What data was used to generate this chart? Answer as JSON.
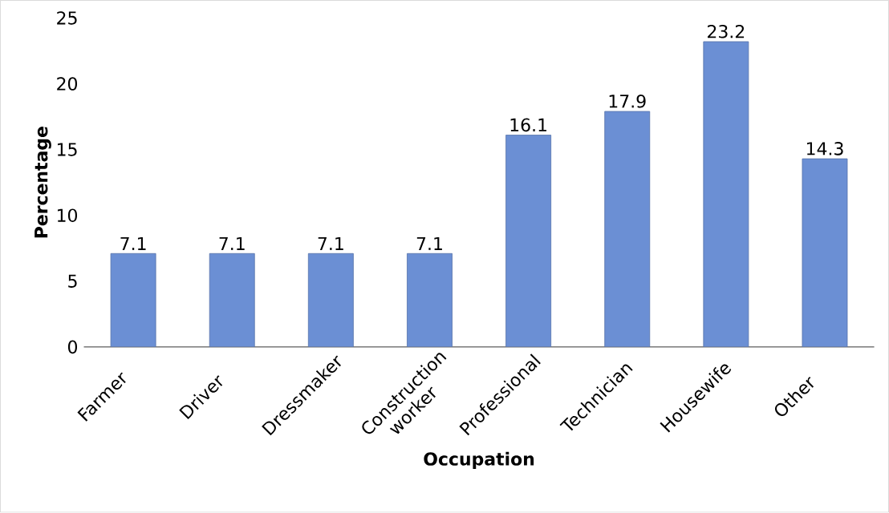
{
  "chart_data": {
    "type": "bar",
    "xlabel": "Occupation",
    "ylabel": "Percentage",
    "categories": [
      "Farmer",
      "Driver",
      "Dressmaker",
      "Construction worker",
      "Professional",
      "Technician",
      "Housewife",
      "Other"
    ],
    "values": [
      7.1,
      7.1,
      7.1,
      7.1,
      16.1,
      17.9,
      23.2,
      14.3
    ],
    "color": "#6b8fd4",
    "ylim": [
      0,
      25
    ],
    "yticks": [
      0,
      5,
      10,
      15,
      20,
      25
    ],
    "data_labels": true
  }
}
